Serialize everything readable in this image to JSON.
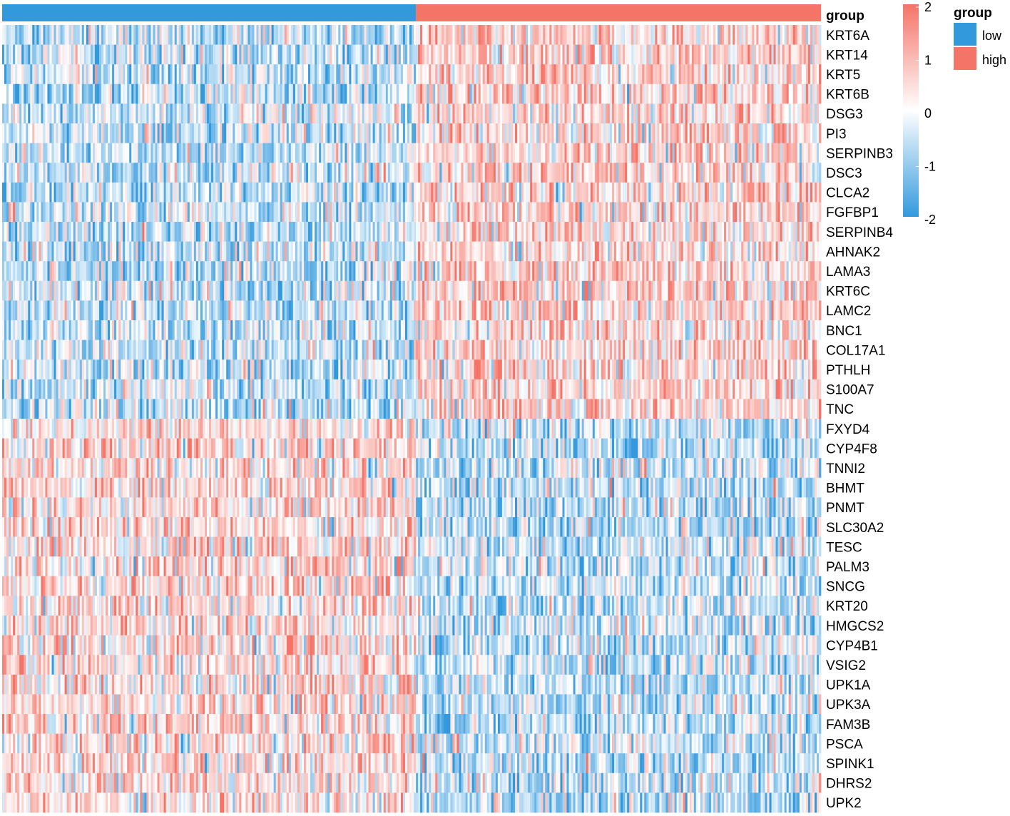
{
  "chart_data": {
    "type": "heatmap",
    "title": "",
    "annotation": {
      "name": "group",
      "groups": [
        {
          "label": "low",
          "color": "#3399DD",
          "fraction": 0.504
        },
        {
          "label": "high",
          "color": "#F47468",
          "fraction": 0.496
        }
      ]
    },
    "rows": [
      "KRT6A",
      "KRT14",
      "KRT5",
      "KRT6B",
      "DSG3",
      "PI3",
      "SERPINB3",
      "DSC3",
      "CLCA2",
      "FGFBP1",
      "SERPINB4",
      "AHNAK2",
      "LAMA3",
      "KRT6C",
      "LAMC2",
      "BNC1",
      "COL17A1",
      "PTHLH",
      "S100A7",
      "TNC",
      "FXYD4",
      "CYP4F8",
      "TNNI2",
      "BHMT",
      "PNMT",
      "SLC30A2",
      "TESC",
      "PALM3",
      "SNCG",
      "KRT20",
      "HMGCS2",
      "CYP4B1",
      "VSIG2",
      "UPK1A",
      "UPK3A",
      "FAM3B",
      "PSCA",
      "SPINK1",
      "DHRS2",
      "UPK2"
    ],
    "row_pattern": [
      "up_in_high",
      "up_in_high",
      "up_in_high",
      "up_in_high",
      "up_in_high",
      "up_in_high",
      "up_in_high",
      "up_in_high",
      "up_in_high",
      "up_in_high",
      "up_in_high",
      "up_in_high",
      "up_in_high",
      "up_in_high",
      "up_in_high",
      "up_in_high",
      "up_in_high",
      "up_in_high",
      "up_in_high",
      "up_in_high",
      "down_in_high",
      "down_in_high",
      "down_in_high",
      "down_in_high",
      "down_in_high",
      "down_in_high",
      "down_in_high",
      "down_in_high",
      "down_in_high",
      "down_in_high",
      "down_in_high",
      "down_in_high",
      "down_in_high",
      "down_in_high",
      "down_in_high",
      "down_in_high",
      "down_in_high",
      "down_in_high",
      "down_in_high",
      "down_in_high"
    ],
    "n_samples": 380,
    "color_scale": {
      "min": -2,
      "max": 2,
      "colors": [
        "#3399DD",
        "#FFFFFF",
        "#F47468"
      ],
      "ticks": [
        "2",
        "1",
        "0",
        "-1",
        "-2"
      ]
    },
    "legend": {
      "title": "group",
      "placement": "top-right"
    }
  }
}
